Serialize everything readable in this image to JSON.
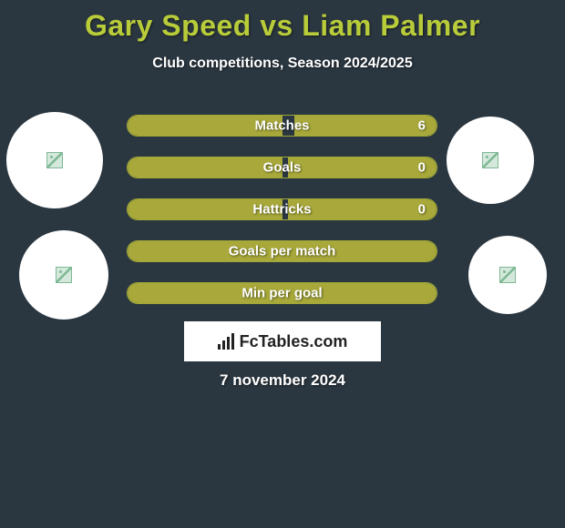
{
  "title": "Gary Speed vs Liam Palmer",
  "subtitle": "Club competitions, Season 2024/2025",
  "date": "7 november 2024",
  "logo_text": "FcTables.com",
  "colors": {
    "background": "#2a3640",
    "accent": "#b8cc3a",
    "bar_fill": "#a8a93a",
    "bar_border": "#a0a838",
    "text": "#ffffff",
    "avatar_bg": "#ffffff"
  },
  "bars": [
    {
      "label": "Matches",
      "left_pct": 50,
      "right_pct": 46,
      "value": "6"
    },
    {
      "label": "Goals",
      "left_pct": 50,
      "right_pct": 48,
      "value": "0"
    },
    {
      "label": "Hattricks",
      "left_pct": 50,
      "right_pct": 48,
      "value": "0"
    },
    {
      "label": "Goals per match",
      "left_pct": 100,
      "right_pct": 0,
      "value": ""
    },
    {
      "label": "Min per goal",
      "left_pct": 100,
      "right_pct": 0,
      "value": ""
    }
  ]
}
